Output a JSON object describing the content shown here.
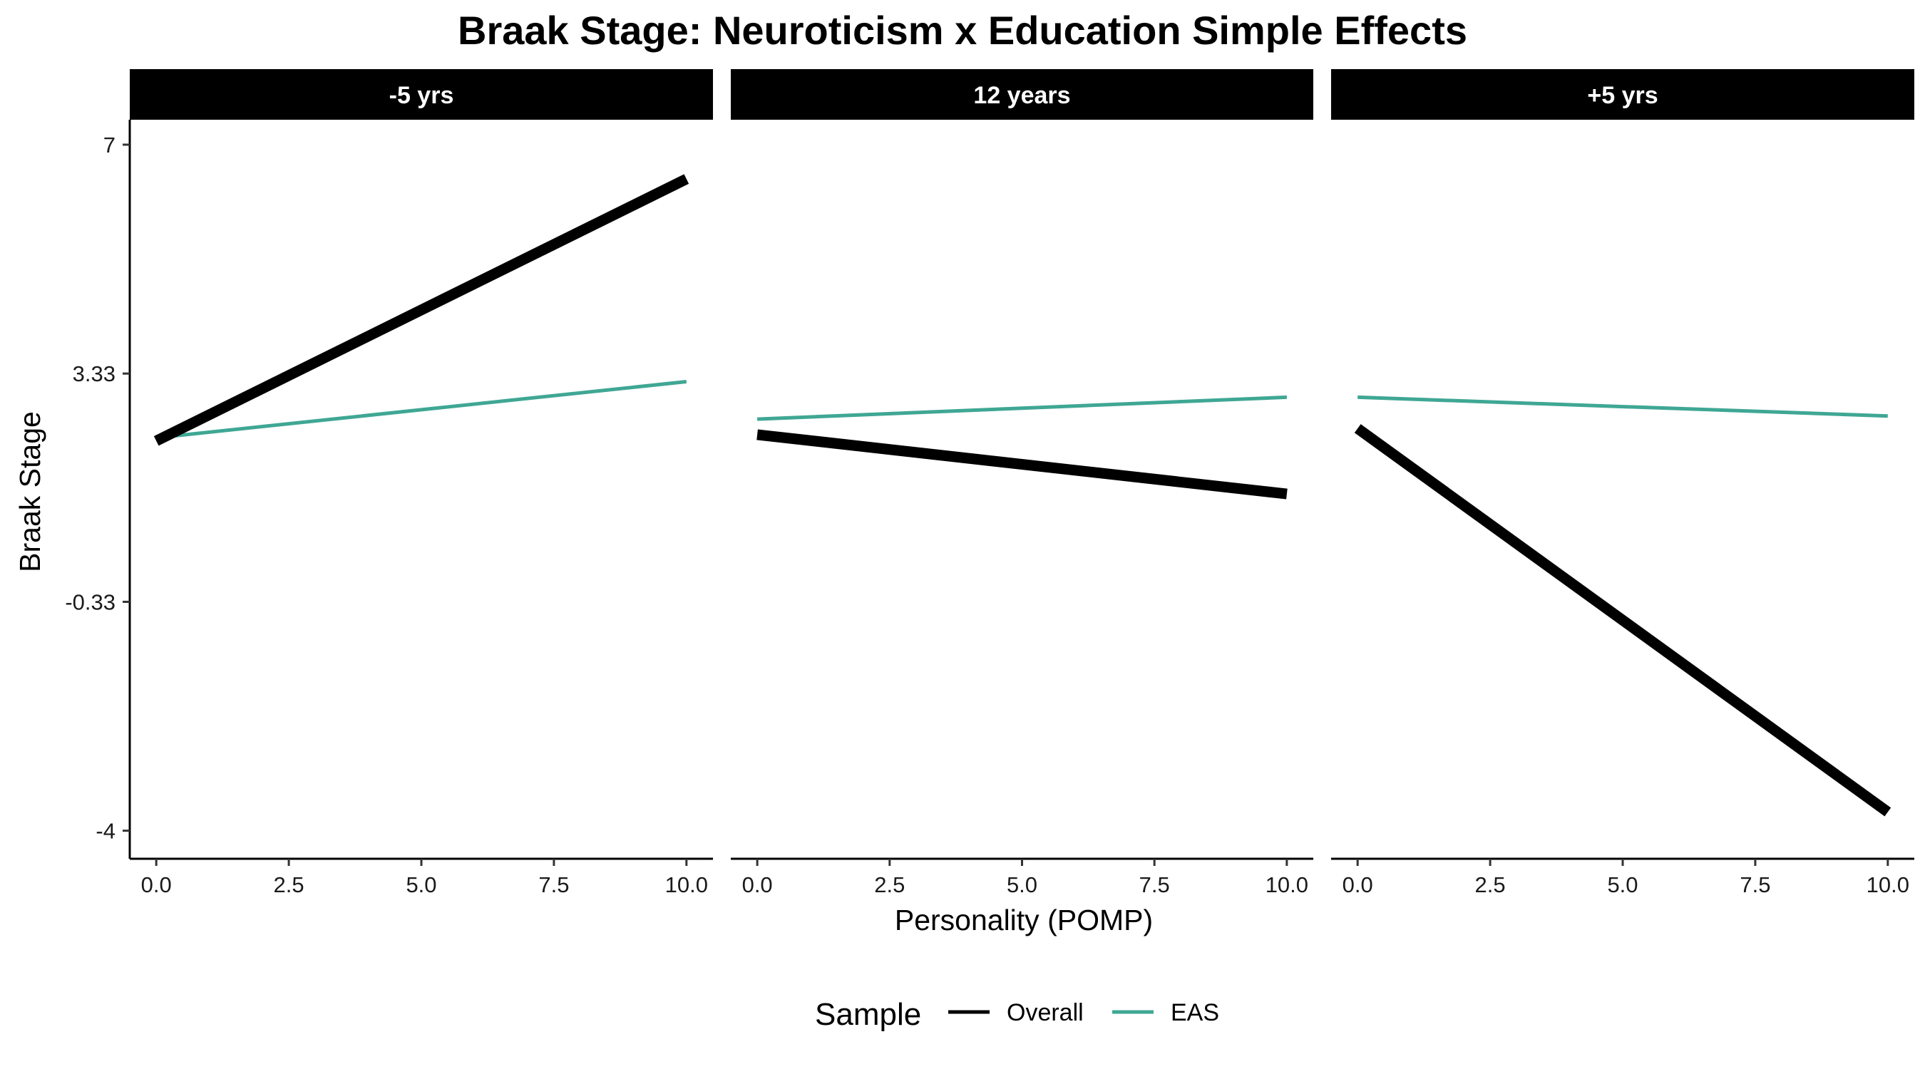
{
  "chart_data": {
    "type": "line",
    "title": "Braak Stage: Neuroticism x Education Simple Effects",
    "xlabel": "Personality (POMP)",
    "ylabel": "Braak Stage",
    "xlim": [
      -0.5,
      10.5
    ],
    "ylim": [
      -4.45,
      7.4
    ],
    "x_ticks": [
      0,
      2.5,
      5,
      7.5,
      10
    ],
    "x_tick_labels": [
      "0.0",
      "2.5",
      "5.0",
      "7.5",
      "10.0"
    ],
    "y_ticks": [
      -4,
      -0.33,
      3.33,
      7
    ],
    "y_tick_labels": [
      "-4",
      "-0.33",
      "3.33",
      "7"
    ],
    "grid": false,
    "legend": {
      "title": "Sample",
      "position": "bottom",
      "entries": [
        {
          "name": "Overall",
          "color": "#000000"
        },
        {
          "name": "EAS",
          "color": "#3fa794"
        }
      ]
    },
    "panels": [
      {
        "label": "-5 yrs",
        "series": [
          {
            "name": "Overall",
            "x": [
              0,
              10
            ],
            "y": [
              2.25,
              6.45
            ]
          },
          {
            "name": "EAS",
            "x": [
              0,
              10
            ],
            "y": [
              2.3,
              3.2
            ]
          }
        ]
      },
      {
        "label": "12 years",
        "series": [
          {
            "name": "Overall",
            "x": [
              0,
              10
            ],
            "y": [
              2.35,
              1.4
            ]
          },
          {
            "name": "EAS",
            "x": [
              0,
              10
            ],
            "y": [
              2.6,
              2.95
            ]
          }
        ]
      },
      {
        "label": "+5 yrs",
        "series": [
          {
            "name": "Overall",
            "x": [
              0,
              10
            ],
            "y": [
              2.45,
              -3.7
            ]
          },
          {
            "name": "EAS",
            "x": [
              0,
              10
            ],
            "y": [
              2.95,
              2.65
            ]
          }
        ]
      }
    ]
  }
}
